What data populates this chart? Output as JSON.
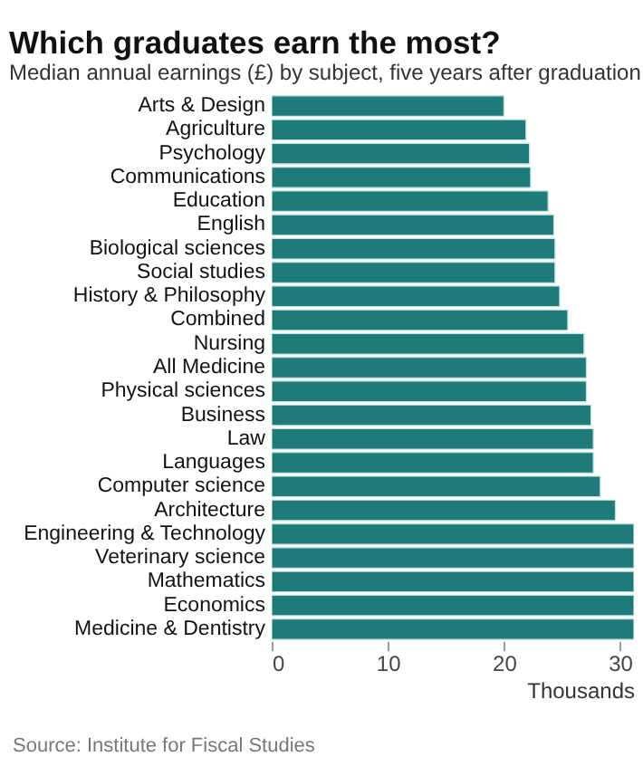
{
  "chart_data": {
    "type": "bar",
    "orientation": "horizontal",
    "title": "Which graduates earn the most?",
    "subtitle": "Median annual earnings (£) by subject, five years after graduation",
    "xlabel": "Thousands",
    "annotations": [
      "Source: Institute for Fiscal Studies"
    ],
    "categories": [
      "Arts & Design",
      "Agriculture",
      "Psychology",
      "Communications",
      "Education",
      "English",
      "Biological sciences",
      "Social studies",
      "History & Philosophy",
      "Combined",
      "Nursing",
      "All Medicine",
      "Physical sciences",
      "Business",
      "Law",
      "Languages",
      "Computer science",
      "Architecture",
      "Engineering & Technology",
      "Veterinary science",
      "Mathematics",
      "Economics",
      "Medicine & Dentistry"
    ],
    "values": [
      20.0,
      21.9,
      22.2,
      22.3,
      23.8,
      24.3,
      24.4,
      24.4,
      24.8,
      25.5,
      26.9,
      27.1,
      27.1,
      27.5,
      27.7,
      27.7,
      28.3,
      29.6,
      31.2,
      31.2,
      31.2,
      31.2,
      31.2
    ],
    "color": "#1e7b79",
    "xlim": [
      0,
      31.2
    ],
    "xticks": [
      0,
      10,
      20,
      30
    ],
    "grid": false
  }
}
